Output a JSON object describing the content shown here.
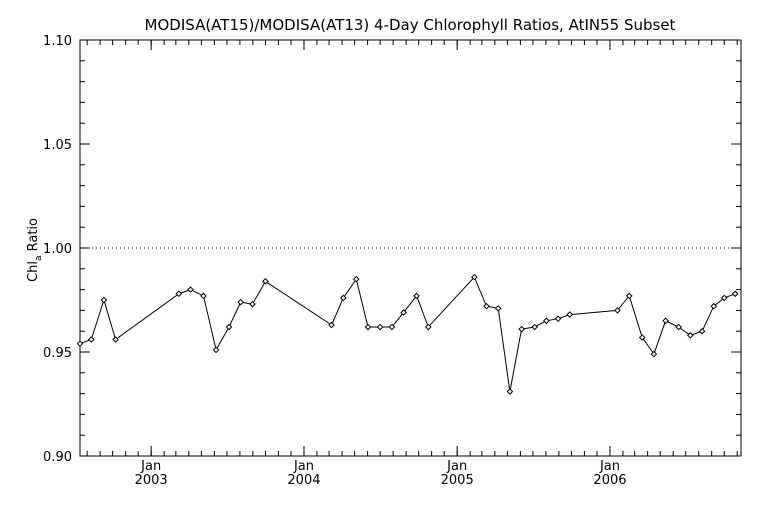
{
  "chart_data": {
    "type": "line",
    "title": "MODISA(AT15)/MODISA(AT13) 4-Day Chlorophyll Ratios, AtIN55 Subset",
    "ylabel": {
      "base": "Chl",
      "subscript": "a",
      "suffix": "Ratio"
    },
    "ylim": [
      0.9,
      1.1
    ],
    "yticks": [
      "0.90",
      "0.95",
      "1.00",
      "1.05",
      "1.10"
    ],
    "xlim": [
      "2002-07-15",
      "2006-11-10"
    ],
    "xticks": [
      {
        "month": "Jan",
        "year": "2003",
        "date": "2003-01-01"
      },
      {
        "month": "Jan",
        "year": "2004",
        "date": "2004-01-01"
      },
      {
        "month": "Jan",
        "year": "2005",
        "date": "2005-01-01"
      },
      {
        "month": "Jan",
        "year": "2006",
        "date": "2006-01-01"
      }
    ],
    "reference_line": 1.0,
    "grid": false,
    "series": [
      {
        "x": [
          "2002-07-15",
          "2002-08-11",
          "2002-09-10",
          "2002-10-08",
          "2003-03-08",
          "2003-04-05",
          "2003-05-06",
          "2003-06-05",
          "2003-07-06",
          "2003-08-03",
          "2003-08-31",
          "2003-10-01",
          "2004-03-07",
          "2004-04-04",
          "2004-05-05",
          "2004-06-02",
          "2004-07-01",
          "2004-07-29",
          "2004-08-26",
          "2004-09-26",
          "2004-10-24",
          "2005-02-11",
          "2005-03-12",
          "2005-04-09",
          "2005-05-07",
          "2005-06-04",
          "2005-07-05",
          "2005-08-02",
          "2005-08-30",
          "2005-09-27",
          "2006-01-19",
          "2006-02-16",
          "2006-03-19",
          "2006-04-16",
          "2006-05-14",
          "2006-06-14",
          "2006-07-12",
          "2006-08-09",
          "2006-09-06",
          "2006-10-01",
          "2006-10-27"
        ],
        "values": [
          0.954,
          0.956,
          0.975,
          0.956,
          0.978,
          0.98,
          0.977,
          0.951,
          0.962,
          0.974,
          0.973,
          0.984,
          0.963,
          0.976,
          0.985,
          0.962,
          0.962,
          0.962,
          0.969,
          0.977,
          0.962,
          0.986,
          0.972,
          0.971,
          0.931,
          0.961,
          0.962,
          0.965,
          0.966,
          0.968,
          0.97,
          0.977,
          0.957,
          0.949,
          0.965,
          0.962,
          0.958,
          0.96,
          0.972,
          0.976,
          0.978
        ]
      }
    ]
  }
}
